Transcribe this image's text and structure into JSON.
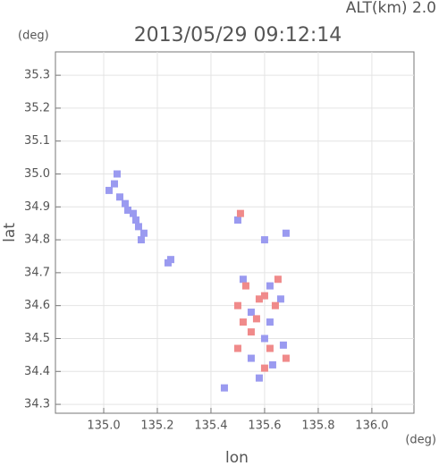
{
  "chart_data": {
    "type": "scatter",
    "title": "2013/05/29 09:12:14",
    "subtitle": "ALT(km) 2.0",
    "y_unit": "(deg)",
    "x_unit": "(deg)",
    "xlabel": "lon",
    "ylabel": "lat",
    "xlim": [
      134.82,
      136.157
    ],
    "ylim": [
      34.273,
      35.371
    ],
    "xticks": [
      {
        "value": 135,
        "label": "135.0"
      },
      135.2,
      135.4,
      135.6,
      135.8,
      {
        "value": 136,
        "label": "136.0"
      }
    ],
    "yticks": [
      34.3,
      34.4,
      34.5,
      34.6,
      34.7,
      34.8,
      34.9,
      {
        "value": 35,
        "label": "35.0"
      },
      35.1,
      35.2,
      35.3
    ],
    "grid": true,
    "series": [
      {
        "color": "#9a9af0",
        "x": [
          135.02,
          135.04,
          135.05,
          135.06,
          135.08,
          135.09,
          135.11,
          135.12,
          135.13,
          135.15,
          135.14,
          135.24,
          135.25,
          135.5,
          135.6,
          135.68,
          135.52,
          135.62,
          135.66,
          135.55,
          135.6,
          135.67,
          135.55,
          135.63,
          135.58,
          135.45,
          135.62
        ],
        "y": [
          34.95,
          34.97,
          35.0,
          34.93,
          34.91,
          34.89,
          34.88,
          34.86,
          34.84,
          34.82,
          34.8,
          34.73,
          34.74,
          34.86,
          34.8,
          34.82,
          34.68,
          34.66,
          34.62,
          34.58,
          34.5,
          34.48,
          34.44,
          34.42,
          34.38,
          34.35,
          34.55
        ]
      },
      {
        "color": "#f08a8a",
        "x": [
          135.51,
          135.53,
          135.58,
          135.5,
          135.64,
          135.55,
          135.62,
          135.68,
          135.5,
          135.57,
          135.6,
          135.65,
          135.52,
          135.6
        ],
        "y": [
          34.88,
          34.66,
          34.62,
          34.6,
          34.6,
          34.52,
          34.47,
          34.44,
          34.47,
          34.56,
          34.63,
          34.68,
          34.55,
          34.41
        ]
      }
    ]
  }
}
